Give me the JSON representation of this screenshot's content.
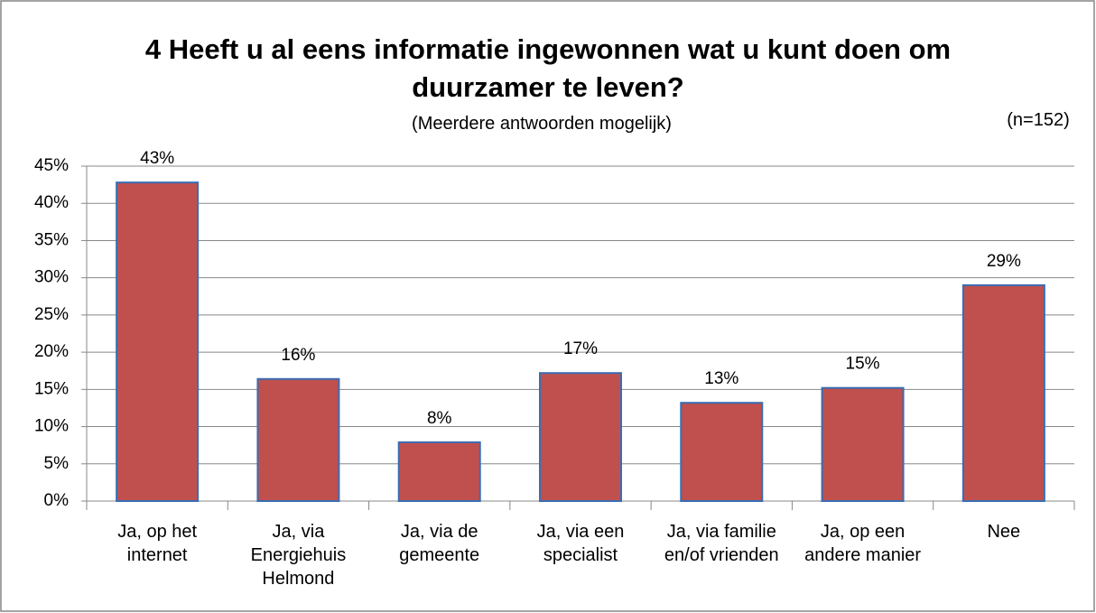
{
  "chart_data": {
    "type": "bar",
    "title": "4 Heeft u al eens informatie ingewonnen wat u kunt doen om duurzamer te leven?",
    "subtitle": "(Meerdere antwoorden mogelijk)",
    "annotation": "(n=152)",
    "categories": [
      "Ja, op het internet",
      "Ja, via Energiehuis Helmond",
      "Ja, via de gemeente",
      "Ja, via een specialist",
      "Ja, via familie en/of vrienden",
      "Ja, op een andere manier",
      "Nee"
    ],
    "values": [
      42.8,
      16.4,
      7.9,
      17.2,
      13.2,
      15.2,
      29.0
    ],
    "value_labels": [
      "43%",
      "16%",
      "8%",
      "17%",
      "13%",
      "15%",
      "29%"
    ],
    "color": "#c0504d",
    "ylim": [
      0,
      45
    ],
    "yticks": [
      {
        "value": 0,
        "label": "0%"
      },
      {
        "value": 5,
        "label": "5%"
      },
      {
        "value": 10,
        "label": "10%"
      },
      {
        "value": 15,
        "label": "15%"
      },
      {
        "value": 20,
        "label": "20%"
      },
      {
        "value": 25,
        "label": "25%"
      },
      {
        "value": 30,
        "label": "30%"
      },
      {
        "value": 35,
        "label": "35%"
      },
      {
        "value": 40,
        "label": "40%"
      },
      {
        "value": 45,
        "label": "45%"
      }
    ],
    "grid": true
  }
}
